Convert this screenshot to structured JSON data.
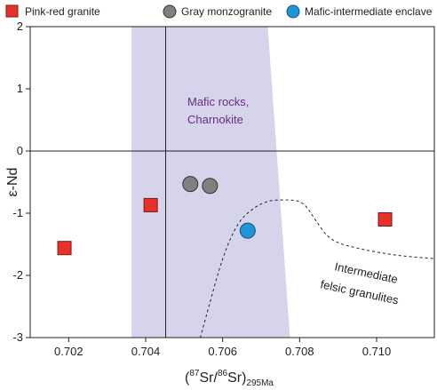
{
  "chart_data": {
    "type": "scatter",
    "ylabel": "ε-Nd",
    "xlabel": {
      "open": "(",
      "sup1": "87",
      "part1": "Sr/",
      "sup2": "86",
      "part2": "Sr)",
      "sub": "295Ma"
    },
    "xlim": [
      0.701,
      0.7115
    ],
    "ylim": [
      -3,
      2
    ],
    "x_ticks": [
      0.702,
      0.704,
      0.706,
      0.708,
      0.71
    ],
    "x_tick_labels": [
      "0.702",
      "0.704",
      "0.706",
      "0.708",
      "0.710"
    ],
    "y_ticks": [
      -3,
      -2,
      -1,
      0,
      1,
      2
    ],
    "y_tick_labels": [
      "-3",
      "-2",
      "-1",
      "0",
      "1",
      "2"
    ],
    "reference_lines": {
      "x": 0.70452,
      "y": 0
    },
    "legend": {
      "placement": "top",
      "entries": [
        {
          "label": "Pink-red granite",
          "marker": "square",
          "color": "#e8312a"
        },
        {
          "label": "Gray monzogranite",
          "marker": "circle",
          "color": "#808080"
        },
        {
          "label": "Mafic-intermediate enclave",
          "marker": "circle",
          "color": "#1f96d8"
        }
      ]
    },
    "series": [
      {
        "name": "Pink-red granite",
        "marker": "square",
        "color": "#e8312a",
        "points": [
          {
            "x": 0.70189,
            "y": -1.56
          },
          {
            "x": 0.70413,
            "y": -0.87
          },
          {
            "x": 0.71022,
            "y": -1.1
          }
        ]
      },
      {
        "name": "Gray monzogranite",
        "marker": "circle",
        "color": "#808080",
        "points": [
          {
            "x": 0.70516,
            "y": -0.53
          },
          {
            "x": 0.70567,
            "y": -0.56
          }
        ]
      },
      {
        "name": "Mafic-intermediate enclave",
        "marker": "circle",
        "color": "#1f96d8",
        "points": [
          {
            "x": 0.70665,
            "y": -1.28
          }
        ]
      }
    ],
    "regions": [
      {
        "label_lines": [
          "Mafic rocks,",
          "Charnokite"
        ],
        "color": "#d6d4ea",
        "label_color": "#6a2c86",
        "polygon": [
          [
            0.70363,
            2.0
          ],
          [
            0.70717,
            2.0
          ],
          [
            0.70775,
            -3.0
          ],
          [
            0.70363,
            -3.0
          ]
        ]
      }
    ],
    "curves": [
      {
        "label_lines": [
          "Intermediate",
          "felsic granulites"
        ],
        "style": "dashed",
        "points": [
          [
            0.70542,
            -3.0
          ],
          [
            0.7062,
            -1.25
          ],
          [
            0.707,
            -0.8
          ],
          [
            0.70775,
            -0.78
          ],
          [
            0.7081,
            -0.82
          ],
          [
            0.7084,
            -1.1
          ],
          [
            0.7088,
            -1.45
          ],
          [
            0.7096,
            -1.58
          ],
          [
            0.7105,
            -1.68
          ],
          [
            0.7115,
            -1.73
          ]
        ]
      }
    ]
  }
}
